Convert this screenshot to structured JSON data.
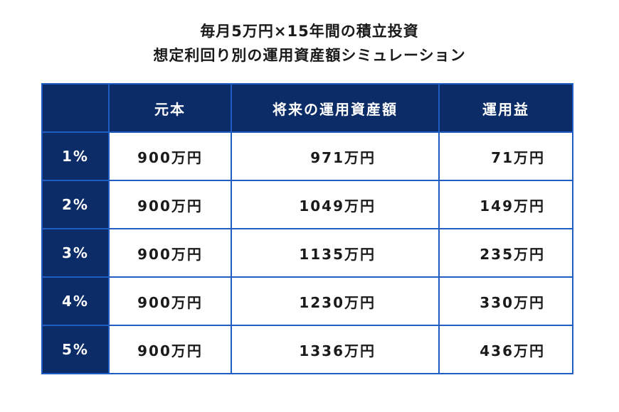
{
  "title_lines": [
    "毎月5万円×15年間の積立投資",
    "想定利回り別の運用資産額シミュレーション"
  ],
  "chart_data": {
    "type": "table",
    "title": "毎月5万円×15年間の積立投資 想定利回り別の運用資産額シミュレーション",
    "columns": [
      "",
      "元本",
      "将来の運用資産額",
      "運用益"
    ],
    "rows": [
      [
        "1%",
        "900万円",
        "971万円",
        "71万円"
      ],
      [
        "2%",
        "900万円",
        "1049万円",
        "149万円"
      ],
      [
        "3%",
        "900万円",
        "1135万円",
        "235万円"
      ],
      [
        "4%",
        "900万円",
        "1230万円",
        "330万円"
      ],
      [
        "5%",
        "900万円",
        "1336万円",
        "436万円"
      ]
    ]
  },
  "colors": {
    "header_bg": "#0b2c66",
    "border": "#1f5cc4",
    "header_text": "#ffffff"
  }
}
